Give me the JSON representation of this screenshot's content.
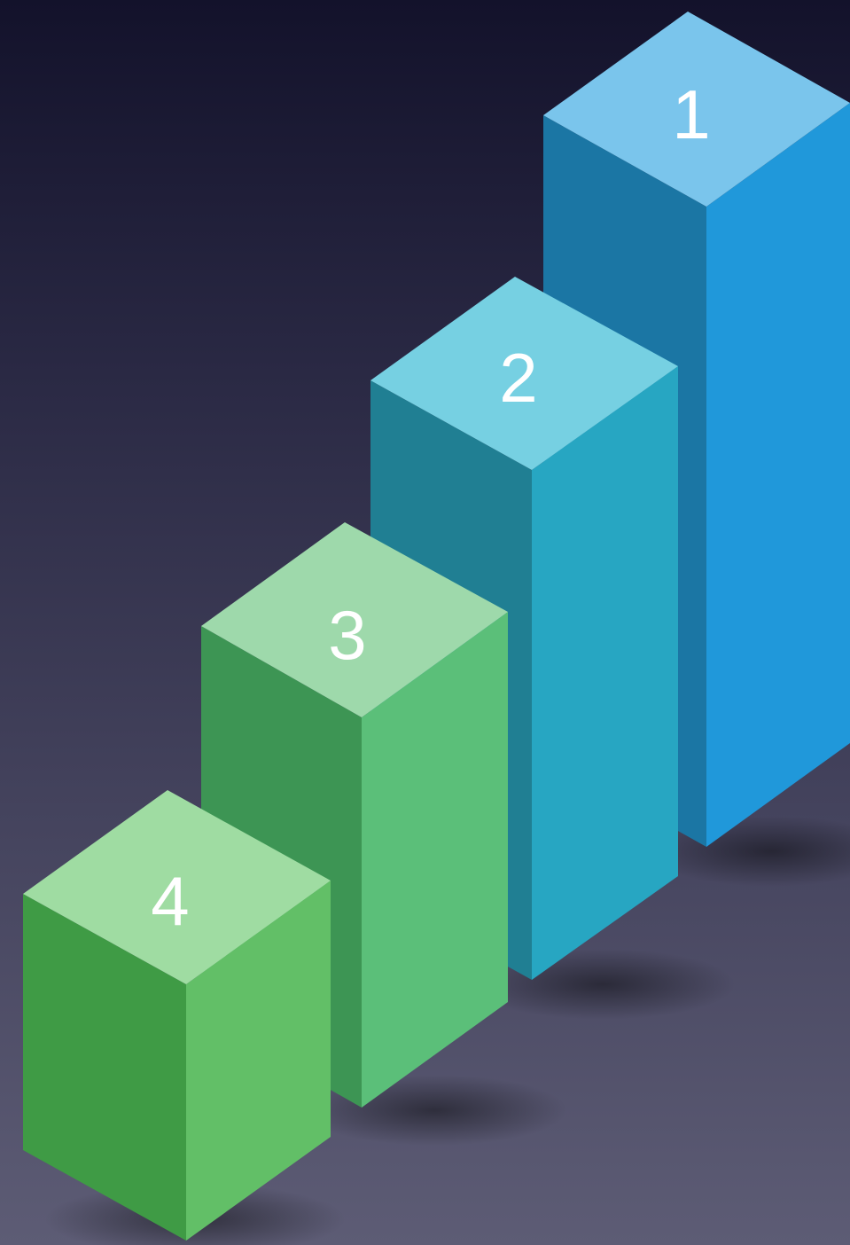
{
  "diagram": {
    "bars": [
      {
        "label": "1",
        "colors": {
          "top": "#7ac5ec",
          "left": "#1b76a4",
          "right": "#2098da"
        }
      },
      {
        "label": "2",
        "colors": {
          "top": "#76d0e2",
          "left": "#207f93",
          "right": "#27a6c2"
        }
      },
      {
        "label": "3",
        "colors": {
          "top": "#9ed9ab",
          "left": "#3d9554",
          "right": "#5bbf79"
        }
      },
      {
        "label": "4",
        "colors": {
          "top": "#9fdca2",
          "left": "#3f9b45",
          "right": "#62bf67"
        }
      }
    ],
    "background": {
      "top": "#13122b",
      "bottom": "#5d5c75"
    }
  }
}
